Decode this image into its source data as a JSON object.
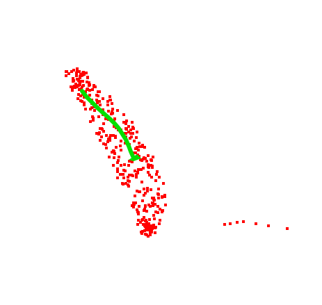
{
  "map": {
    "background_color": "#ffffff",
    "point_color": "#ff0000",
    "route_color": "#00e000",
    "layers": [
      "scattered-location-points",
      "route-path"
    ]
  }
}
